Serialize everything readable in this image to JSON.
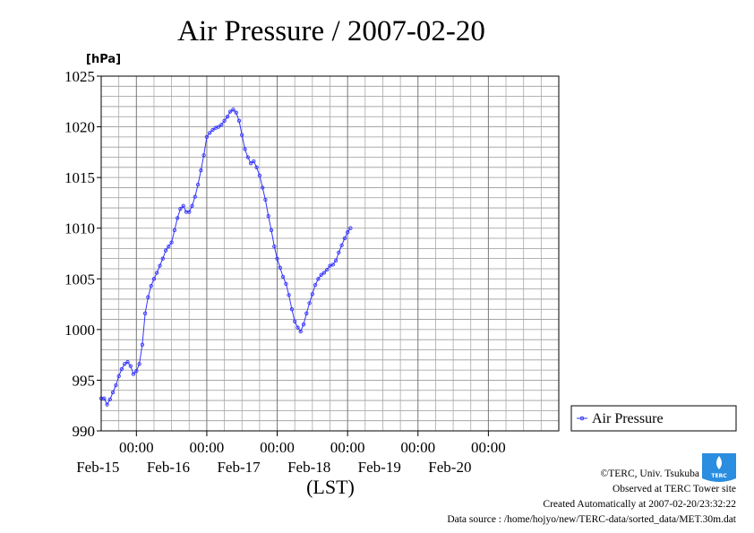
{
  "chart_data": {
    "type": "line",
    "title": "Air Pressure / 2007-02-20",
    "ylabel": "[hPa]",
    "xlabel": "(LST)",
    "ylim": [
      990,
      1025
    ],
    "yticks": [
      990,
      995,
      1000,
      1005,
      1010,
      1015,
      1020,
      1025
    ],
    "xlim": [
      "2007-02-14 12:00",
      "2007-02-21 00:00"
    ],
    "xticks": [
      {
        "datetime": "2007-02-15 00:00",
        "time": "00:00",
        "date": "Feb-15"
      },
      {
        "datetime": "2007-02-16 00:00",
        "time": "00:00",
        "date": "Feb-16"
      },
      {
        "datetime": "2007-02-17 00:00",
        "time": "00:00",
        "date": "Feb-17"
      },
      {
        "datetime": "2007-02-18 00:00",
        "time": "00:00",
        "date": "Feb-18"
      },
      {
        "datetime": "2007-02-19 00:00",
        "time": "00:00",
        "date": "Feb-19"
      },
      {
        "datetime": "2007-02-20 00:00",
        "time": "00:00",
        "date": "Feb-20"
      }
    ],
    "grid": true,
    "legend_position": "right",
    "series": [
      {
        "name": "Air Pressure",
        "color": "#3333ff",
        "marker": "circle",
        "points": [
          [
            "2007-02-14 12:00",
            993.2
          ],
          [
            "2007-02-14 13:00",
            993.2
          ],
          [
            "2007-02-14 14:00",
            992.6
          ],
          [
            "2007-02-14 15:00",
            993.1
          ],
          [
            "2007-02-14 16:00",
            993.8
          ],
          [
            "2007-02-14 17:00",
            994.5
          ],
          [
            "2007-02-14 18:00",
            995.4
          ],
          [
            "2007-02-14 19:00",
            996.1
          ],
          [
            "2007-02-14 20:00",
            996.6
          ],
          [
            "2007-02-14 21:00",
            996.8
          ],
          [
            "2007-02-14 22:00",
            996.4
          ],
          [
            "2007-02-14 23:00",
            995.6
          ],
          [
            "2007-02-15 00:00",
            995.9
          ],
          [
            "2007-02-15 01:00",
            996.6
          ],
          [
            "2007-02-15 02:00",
            998.5
          ],
          [
            "2007-02-15 03:00",
            1001.6
          ],
          [
            "2007-02-15 04:00",
            1003.2
          ],
          [
            "2007-02-15 05:00",
            1004.3
          ],
          [
            "2007-02-15 06:00",
            1005.0
          ],
          [
            "2007-02-15 07:00",
            1005.6
          ],
          [
            "2007-02-15 08:00",
            1006.3
          ],
          [
            "2007-02-15 09:00",
            1007.0
          ],
          [
            "2007-02-15 10:00",
            1007.8
          ],
          [
            "2007-02-15 11:00",
            1008.2
          ],
          [
            "2007-02-15 12:00",
            1008.6
          ],
          [
            "2007-02-15 13:00",
            1009.8
          ],
          [
            "2007-02-15 14:00",
            1011.0
          ],
          [
            "2007-02-15 15:00",
            1011.9
          ],
          [
            "2007-02-15 16:00",
            1012.2
          ],
          [
            "2007-02-15 17:00",
            1011.6
          ],
          [
            "2007-02-15 18:00",
            1011.6
          ],
          [
            "2007-02-15 19:00",
            1012.2
          ],
          [
            "2007-02-15 20:00",
            1013.1
          ],
          [
            "2007-02-15 21:00",
            1014.3
          ],
          [
            "2007-02-15 22:00",
            1015.7
          ],
          [
            "2007-02-15 23:00",
            1017.2
          ],
          [
            "2007-02-16 00:00",
            1019.0
          ],
          [
            "2007-02-16 01:00",
            1019.4
          ],
          [
            "2007-02-16 02:00",
            1019.7
          ],
          [
            "2007-02-16 03:00",
            1019.9
          ],
          [
            "2007-02-16 04:00",
            1020.0
          ],
          [
            "2007-02-16 05:00",
            1020.2
          ],
          [
            "2007-02-16 06:00",
            1020.6
          ],
          [
            "2007-02-16 07:00",
            1021.0
          ],
          [
            "2007-02-16 08:00",
            1021.5
          ],
          [
            "2007-02-16 09:00",
            1021.7
          ],
          [
            "2007-02-16 10:00",
            1021.4
          ],
          [
            "2007-02-16 11:00",
            1020.6
          ],
          [
            "2007-02-16 12:00",
            1019.2
          ],
          [
            "2007-02-16 13:00",
            1017.8
          ],
          [
            "2007-02-16 14:00",
            1017.0
          ],
          [
            "2007-02-16 15:00",
            1016.4
          ],
          [
            "2007-02-16 16:00",
            1016.6
          ],
          [
            "2007-02-16 17:00",
            1016.0
          ],
          [
            "2007-02-16 18:00",
            1015.2
          ],
          [
            "2007-02-16 19:00",
            1014.0
          ],
          [
            "2007-02-16 20:00",
            1012.8
          ],
          [
            "2007-02-16 21:00",
            1011.2
          ],
          [
            "2007-02-16 22:00",
            1009.8
          ],
          [
            "2007-02-16 23:00",
            1008.2
          ],
          [
            "2007-02-17 00:00",
            1007.0
          ],
          [
            "2007-02-17 01:00",
            1006.1
          ],
          [
            "2007-02-17 02:00",
            1005.2
          ],
          [
            "2007-02-17 03:00",
            1004.5
          ],
          [
            "2007-02-17 04:00",
            1003.4
          ],
          [
            "2007-02-17 05:00",
            1002.0
          ],
          [
            "2007-02-17 06:00",
            1000.8
          ],
          [
            "2007-02-17 07:00",
            1000.2
          ],
          [
            "2007-02-17 08:00",
            999.8
          ],
          [
            "2007-02-17 09:00",
            1000.5
          ],
          [
            "2007-02-17 10:00",
            1001.6
          ],
          [
            "2007-02-17 11:00",
            1002.6
          ],
          [
            "2007-02-17 12:00",
            1003.5
          ],
          [
            "2007-02-17 13:00",
            1004.4
          ],
          [
            "2007-02-17 14:00",
            1005.0
          ],
          [
            "2007-02-17 15:00",
            1005.4
          ],
          [
            "2007-02-17 16:00",
            1005.6
          ],
          [
            "2007-02-17 17:00",
            1005.9
          ],
          [
            "2007-02-17 18:00",
            1006.3
          ],
          [
            "2007-02-17 19:00",
            1006.4
          ],
          [
            "2007-02-17 20:00",
            1006.8
          ],
          [
            "2007-02-17 21:00",
            1007.6
          ],
          [
            "2007-02-17 22:00",
            1008.3
          ],
          [
            "2007-02-17 23:00",
            1009.0
          ],
          [
            "2007-02-18 00:00",
            1009.6
          ],
          [
            "2007-02-18 01:00",
            1010.0
          ]
        ]
      }
    ]
  },
  "footer": {
    "copyright": "©TERC, Univ. Tsukuba",
    "observed": "Observed at TERC Tower site",
    "created": "Created Automatically at 2007-02-20/23:32:22",
    "source": "Data source : /home/hojyo/new/TERC-data/sorted_data/MET.30m.dat"
  },
  "logo": {
    "text": "TERC",
    "color": "#2a8de0"
  }
}
